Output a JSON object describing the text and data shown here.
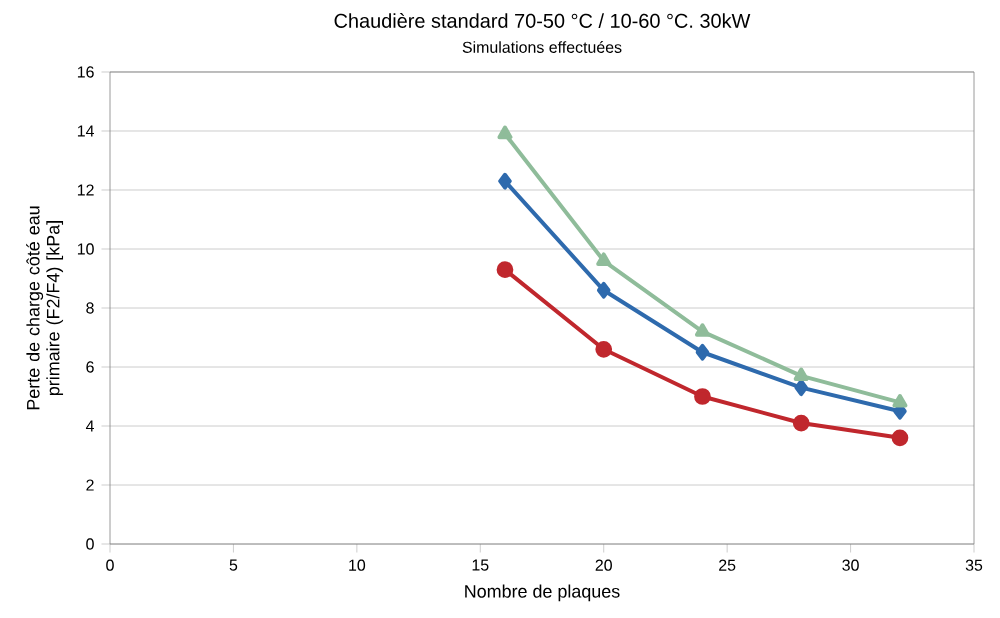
{
  "chart_data": {
    "type": "line",
    "title": "Chaudière standard 70-50 °C / 10-60 °C. 30kW",
    "subtitle": "Simulations effectuées",
    "xlabel": "Nombre de plaques",
    "ylabel": "Perte de charge côté eau primaire (F2/F4) [kPa]",
    "x": [
      16,
      20,
      24,
      28,
      32
    ],
    "series": [
      {
        "color": "#c0272d",
        "marker": "circle",
        "values": [
          9.3,
          6.6,
          5.0,
          4.1,
          3.6
        ]
      },
      {
        "color": "#2e6aad",
        "marker": "diamond",
        "values": [
          12.3,
          8.6,
          6.5,
          5.3,
          4.5
        ]
      },
      {
        "color": "#8fbc9a",
        "marker": "triangle",
        "values": [
          13.9,
          9.6,
          7.2,
          5.7,
          4.8
        ]
      }
    ],
    "xlim": [
      0,
      35
    ],
    "xticks": [
      0,
      5,
      10,
      15,
      20,
      25,
      30,
      35
    ],
    "ylim": [
      0,
      16
    ],
    "yticks": [
      0,
      2,
      4,
      6,
      8,
      10,
      12,
      14,
      16
    ],
    "grid": "y",
    "line_style": "solid"
  }
}
